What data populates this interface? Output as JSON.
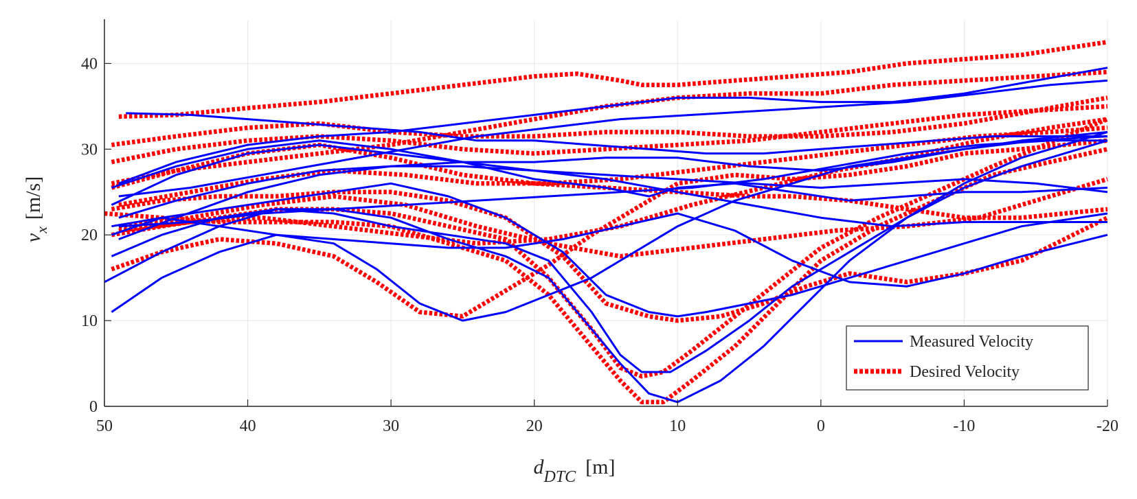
{
  "chart_data": {
    "type": "line",
    "title": "",
    "xlabel": {
      "main": "d",
      "subscript": "DTC",
      "unit": "[m]"
    },
    "ylabel": {
      "main": "v",
      "subscript": "x",
      "unit": "[m/s]"
    },
    "xlim": [
      50,
      -20
    ],
    "ylim": [
      0,
      45
    ],
    "x_reversed": true,
    "x_ticks": [
      50,
      40,
      30,
      20,
      10,
      0,
      -10,
      -20
    ],
    "x_tick_labels": [
      "50",
      "40",
      "30",
      "20",
      "10",
      "0",
      "-10",
      "-20"
    ],
    "y_ticks": [
      0,
      10,
      20,
      30,
      40
    ],
    "y_tick_labels": [
      "0",
      "10",
      "20",
      "30",
      "40"
    ],
    "grid": true,
    "legend": {
      "placement": "bottom-right",
      "entries": [
        {
          "label": "Measured Velocity",
          "color": "#0000ff",
          "style": "solid"
        },
        {
          "label": "Desired Velocity",
          "color": "#ff0000",
          "style": "dotted"
        }
      ]
    },
    "series": [
      {
        "name": "Measured Velocity",
        "color": "#0000ff",
        "style": "solid",
        "x": [
          49.5,
          46,
          42,
          38,
          34,
          31,
          28,
          25,
          22,
          19,
          16,
          13,
          10,
          6,
          2,
          -2,
          -6,
          -10,
          -14,
          -20
        ],
        "y": [
          11,
          15,
          18,
          20,
          19,
          16,
          12,
          10,
          11,
          13,
          15,
          18,
          21,
          24,
          26,
          28,
          29,
          30,
          31,
          32
        ]
      },
      {
        "name": "Measured Velocity",
        "color": "#0000ff",
        "style": "solid",
        "x": [
          50,
          46,
          42,
          38,
          34,
          30,
          26,
          22,
          19,
          16.5,
          14,
          12,
          10,
          7,
          4,
          1,
          -2,
          -6,
          -10,
          -14,
          -20
        ],
        "y": [
          14.5,
          18,
          21,
          23,
          23,
          22,
          19.5,
          17.5,
          15,
          10,
          5,
          1.5,
          0.5,
          3,
          7,
          12,
          17,
          22,
          26,
          29,
          32
        ]
      },
      {
        "name": "Measured Velocity",
        "color": "#0000ff",
        "style": "solid",
        "x": [
          49.5,
          46,
          42,
          38,
          34,
          30,
          26,
          22,
          19,
          16,
          14,
          12.5,
          10.5,
          8,
          5,
          2,
          -2,
          -6,
          -10,
          -14,
          -20
        ],
        "y": [
          17.5,
          20,
          22,
          23,
          22.5,
          21,
          20,
          19,
          17,
          11,
          6,
          4,
          4,
          6.5,
          10,
          14,
          18,
          22,
          25.5,
          28,
          31
        ]
      },
      {
        "name": "Measured Velocity",
        "color": "#0000ff",
        "style": "solid",
        "x": [
          49.5,
          46,
          42,
          38,
          34,
          30,
          26,
          22,
          18,
          15,
          12,
          10,
          8,
          5,
          2,
          -2,
          -6,
          -10,
          -14,
          -20
        ],
        "y": [
          20,
          22,
          23,
          24,
          25,
          26,
          24.5,
          22,
          18,
          13,
          11,
          10.5,
          11,
          12,
          13,
          15,
          17,
          19,
          21,
          22.5
        ]
      },
      {
        "name": "Measured Velocity",
        "color": "#0000ff",
        "style": "solid",
        "x": [
          49.5,
          46,
          42,
          38,
          34,
          30,
          26,
          22,
          18,
          14,
          10,
          6,
          2,
          -2,
          -6,
          -10,
          -14,
          -20
        ],
        "y": [
          21,
          22,
          21,
          20,
          19.5,
          19,
          18.5,
          18.5,
          19.5,
          21,
          22.5,
          20.5,
          17,
          14.5,
          14,
          15.5,
          17.5,
          20
        ]
      },
      {
        "name": "Measured Velocity",
        "color": "#0000ff",
        "style": "solid",
        "x": [
          49.5,
          45,
          40,
          35,
          30,
          25,
          20,
          15,
          12,
          10,
          6,
          2,
          -2,
          -6,
          -10,
          -14,
          -20
        ],
        "y": [
          25.5,
          28,
          30,
          31,
          30,
          28.5,
          26.5,
          25.5,
          24.5,
          25.5,
          26,
          25,
          24,
          24.5,
          25,
          25,
          25.5
        ]
      },
      {
        "name": "Measured Velocity",
        "color": "#0000ff",
        "style": "solid",
        "x": [
          49.5,
          45,
          40,
          35,
          30,
          25,
          20,
          15,
          10,
          5,
          0,
          -5,
          -10,
          -15,
          -20
        ],
        "y": [
          23.5,
          27,
          29.5,
          30.5,
          29.5,
          28.5,
          27.5,
          27,
          26.5,
          26,
          25.5,
          26,
          26.5,
          26,
          25
        ]
      },
      {
        "name": "Measured Velocity",
        "color": "#0000ff",
        "style": "solid",
        "x": [
          48.5,
          44,
          40,
          36,
          32,
          28,
          24,
          20,
          16,
          12,
          8,
          4,
          0,
          -4,
          -8,
          -12,
          -16,
          -20
        ],
        "y": [
          34.2,
          34,
          33.5,
          33,
          32.5,
          32,
          31,
          31,
          30.5,
          30,
          29.5,
          29.5,
          30,
          30.5,
          31,
          31.5,
          31.5,
          31.5
        ]
      },
      {
        "name": "Measured Velocity",
        "color": "#0000ff",
        "style": "solid",
        "x": [
          49,
          45,
          40,
          35,
          30,
          25,
          20,
          15,
          10,
          5,
          0,
          -5,
          -10,
          -15,
          -20
        ],
        "y": [
          26,
          28.5,
          30.5,
          31.5,
          32,
          33,
          34,
          35,
          36,
          36,
          35.5,
          35.5,
          36.5,
          38,
          39.5
        ]
      },
      {
        "name": "Measured Velocity",
        "color": "#0000ff",
        "style": "solid",
        "x": [
          49,
          45,
          40,
          35,
          30,
          25,
          20,
          15,
          10,
          5,
          0,
          -5,
          -10,
          -15,
          -20
        ],
        "y": [
          19.5,
          22,
          25,
          27,
          28,
          28.5,
          28.5,
          29,
          29,
          28,
          27.5,
          28.5,
          30,
          31,
          31.5
        ]
      },
      {
        "name": "Measured Velocity",
        "color": "#0000ff",
        "style": "solid",
        "x": [
          49,
          45,
          40,
          35,
          30,
          25,
          20,
          15,
          10,
          5,
          0,
          -5,
          -10,
          -15,
          -20
        ],
        "y": [
          22,
          24,
          26,
          27.5,
          28,
          28,
          27.5,
          26.5,
          25,
          23.5,
          22,
          21,
          21.5,
          21.5,
          21.5
        ]
      },
      {
        "name": "Measured Velocity",
        "color": "#0000ff",
        "style": "solid",
        "x": [
          49,
          44,
          39,
          34,
          29,
          24,
          19,
          14,
          9,
          4,
          -1,
          -6,
          -11,
          -16,
          -20
        ],
        "y": [
          24.5,
          25.5,
          27,
          28.5,
          30,
          31.5,
          32.5,
          33.5,
          34,
          34.5,
          35,
          35.5,
          36.5,
          37.5,
          38
        ]
      },
      {
        "name": "Measured Velocity",
        "color": "#0000ff",
        "style": "solid",
        "x": [
          49,
          44,
          39,
          34,
          29,
          24,
          19,
          14,
          9,
          4,
          -1,
          -6,
          -11,
          -16,
          -20
        ],
        "y": [
          21,
          21.5,
          22.5,
          23,
          23.5,
          24,
          24.5,
          25,
          25.5,
          26.5,
          28,
          29.5,
          30.5,
          31,
          31
        ]
      },
      {
        "name": "Desired Velocity",
        "color": "#ff0000",
        "style": "dotted",
        "x": [
          49,
          45,
          40,
          35,
          30,
          25,
          20,
          17,
          14,
          12.5,
          10,
          6,
          2,
          -2,
          -6,
          -10,
          -14,
          -20
        ],
        "y": [
          33.8,
          34,
          34.8,
          35.5,
          36.5,
          37.5,
          38.5,
          38.8,
          38,
          37.5,
          37.5,
          38,
          38.5,
          39,
          40,
          40.5,
          41,
          42.5
        ]
      },
      {
        "name": "Desired Velocity",
        "color": "#ff0000",
        "style": "dotted",
        "x": [
          49.5,
          46,
          42,
          38,
          34,
          31,
          28,
          25,
          22,
          19,
          16,
          13,
          10,
          6,
          2,
          -2,
          -6,
          -10,
          -14,
          -20
        ],
        "y": [
          16,
          18,
          19.5,
          19,
          17.5,
          14.5,
          11,
          10.5,
          13.5,
          16.5,
          20,
          23,
          26,
          27,
          26.5,
          27,
          28,
          29.5,
          30,
          31
        ]
      },
      {
        "name": "Desired Velocity",
        "color": "#ff0000",
        "style": "dotted",
        "x": [
          50,
          46,
          42,
          38,
          34,
          30,
          26,
          22,
          19,
          16.5,
          14,
          12.5,
          11,
          9,
          6,
          3,
          0,
          -4,
          -8,
          -12,
          -20
        ],
        "y": [
          22.5,
          22,
          21.5,
          21.5,
          21.5,
          21,
          19,
          17,
          13,
          8,
          3,
          0.5,
          0.5,
          3,
          7,
          12,
          17,
          21,
          24,
          27,
          30
        ]
      },
      {
        "name": "Desired Velocity",
        "color": "#ff0000",
        "style": "dotted",
        "x": [
          49.5,
          46,
          42,
          38,
          34,
          30,
          26,
          22,
          19,
          16,
          14,
          12.5,
          11,
          9,
          6,
          3,
          0,
          -4,
          -8,
          -12,
          -20
        ],
        "y": [
          20,
          21,
          22,
          23,
          23,
          22.5,
          21,
          19.5,
          15,
          9,
          4.5,
          3.5,
          4,
          6.5,
          10.5,
          14.5,
          18.5,
          22,
          25,
          28,
          33.5
        ]
      },
      {
        "name": "Desired Velocity",
        "color": "#ff0000",
        "style": "dotted",
        "x": [
          49.5,
          46,
          42,
          38,
          34,
          30,
          26,
          22,
          18,
          15,
          12,
          10,
          7,
          4,
          1,
          -2,
          -6,
          -10,
          -14,
          -20
        ],
        "y": [
          23,
          24,
          24.5,
          24.5,
          25,
          25,
          24,
          22,
          17.5,
          12,
          10.5,
          10,
          10.5,
          12,
          14,
          15.5,
          14.5,
          15.5,
          17,
          22
        ]
      },
      {
        "name": "Desired Velocity",
        "color": "#ff0000",
        "style": "dotted",
        "x": [
          49.5,
          45,
          40,
          35,
          30,
          25,
          20,
          15,
          10,
          5,
          2,
          -2,
          -6,
          -10,
          -14,
          -20
        ],
        "y": [
          25.5,
          27.5,
          29.5,
          30.5,
          29,
          27,
          26,
          25.5,
          25,
          24.5,
          24.5,
          24,
          23,
          22,
          22,
          23
        ]
      },
      {
        "name": "Desired Velocity",
        "color": "#ff0000",
        "style": "dotted",
        "x": [
          49.5,
          45,
          40,
          35,
          30,
          25,
          20,
          15,
          10,
          5,
          0,
          -5,
          -10,
          -15,
          -20
        ],
        "y": [
          28.5,
          30,
          31,
          31.5,
          31,
          30,
          29.5,
          30,
          30.5,
          31,
          32,
          33,
          34,
          34.5,
          35
        ]
      },
      {
        "name": "Desired Velocity",
        "color": "#ff0000",
        "style": "dotted",
        "x": [
          49.5,
          45,
          40,
          35,
          30,
          25,
          20,
          15,
          10,
          5,
          0,
          -5,
          -10,
          -15,
          -20
        ],
        "y": [
          30.5,
          31.5,
          32.5,
          33,
          32,
          31.5,
          31.5,
          32,
          32,
          31.5,
          31.5,
          32,
          33,
          34.5,
          36
        ]
      },
      {
        "name": "Desired Velocity",
        "color": "#ff0000",
        "style": "dotted",
        "x": [
          49.5,
          45,
          40,
          35,
          30,
          25,
          20,
          15,
          10,
          5,
          0,
          -5,
          -10,
          -15,
          -20
        ],
        "y": [
          26,
          27.5,
          28.5,
          29.5,
          30.5,
          32,
          33.5,
          35,
          36,
          36.5,
          36.5,
          37.5,
          38,
          38.5,
          39
        ]
      },
      {
        "name": "Desired Velocity",
        "color": "#ff0000",
        "style": "dotted",
        "x": [
          49,
          44,
          39,
          34,
          29,
          24,
          19,
          14,
          9,
          4,
          -1,
          -6,
          -11,
          -16,
          -20
        ],
        "y": [
          20.5,
          21.5,
          22,
          21,
          20,
          19,
          19.5,
          21,
          23.5,
          25.5,
          27.5,
          29,
          31,
          32.5,
          33.5
        ]
      },
      {
        "name": "Desired Velocity",
        "color": "#ff0000",
        "style": "dotted",
        "x": [
          49,
          44,
          39,
          34,
          29,
          24,
          19,
          14,
          9,
          4,
          -1,
          -6,
          -11,
          -16,
          -20
        ],
        "y": [
          23.5,
          25,
          26.5,
          27.5,
          27,
          26,
          26,
          26.5,
          27.5,
          28.5,
          29.5,
          30.5,
          31.5,
          32,
          32.5
        ]
      },
      {
        "name": "Desired Velocity",
        "color": "#ff0000",
        "style": "dotted",
        "x": [
          49,
          44,
          39,
          34,
          29,
          24,
          19,
          14,
          9,
          4,
          -1,
          -6,
          -11,
          -16,
          -20
        ],
        "y": [
          21,
          22,
          23.5,
          24.5,
          23.5,
          21,
          19,
          17.5,
          18.5,
          19.5,
          20.5,
          21,
          22,
          24.5,
          26.5
        ]
      }
    ]
  }
}
